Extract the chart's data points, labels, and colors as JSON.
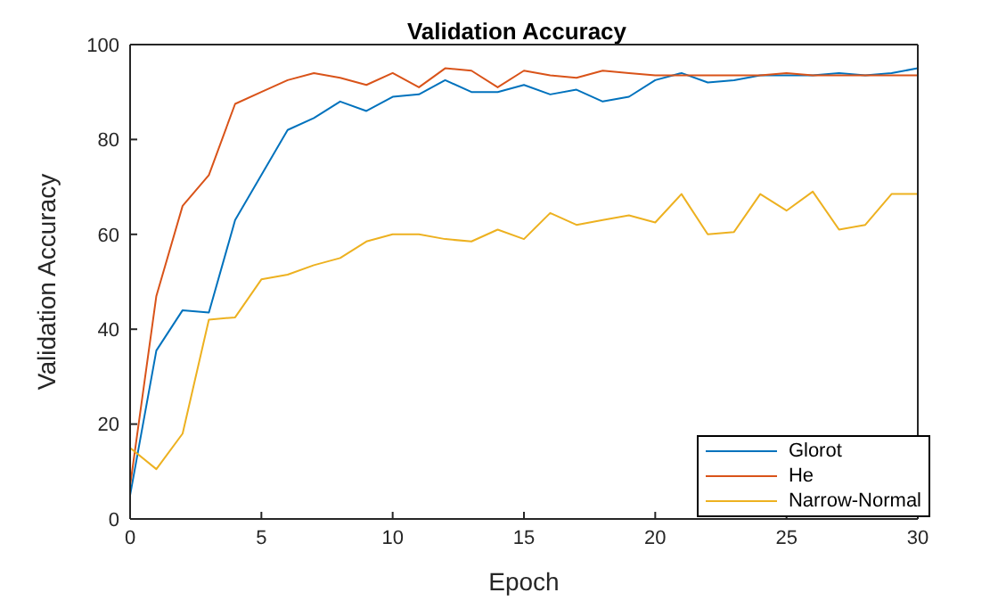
{
  "chart_data": {
    "type": "line",
    "title": "Validation Accuracy",
    "xlabel": "Epoch",
    "ylabel": "Validation Accuracy",
    "x": [
      0,
      1,
      2,
      3,
      4,
      5,
      6,
      7,
      8,
      9,
      10,
      11,
      12,
      13,
      14,
      15,
      16,
      17,
      18,
      19,
      20,
      21,
      22,
      23,
      24,
      25,
      26,
      27,
      28,
      29,
      30
    ],
    "series": [
      {
        "name": "Glorot",
        "color": "#0072bd",
        "values": [
          5,
          35.5,
          44,
          43.5,
          63,
          72.5,
          82,
          84.5,
          88,
          86,
          89,
          89.5,
          92.5,
          90,
          90,
          91.5,
          89.5,
          90.5,
          88,
          89,
          92.5,
          94,
          92,
          92.5,
          93.5,
          93.5,
          93.5,
          94,
          93.5,
          94,
          95
        ]
      },
      {
        "name": "He",
        "color": "#d95319",
        "values": [
          7,
          47,
          66,
          72.5,
          87.5,
          90,
          92.5,
          94,
          93,
          91.5,
          94,
          91,
          95,
          94.5,
          91,
          94.5,
          93.5,
          93,
          94.5,
          94,
          93.5,
          93.5,
          93.5,
          93.5,
          93.5,
          94,
          93.5,
          93.5,
          93.5,
          93.5,
          93.5
        ]
      },
      {
        "name": "Narrow-Normal",
        "color": "#edb120",
        "values": [
          15,
          10.5,
          18,
          42,
          42.5,
          50.5,
          51.5,
          53.5,
          55,
          58.5,
          60,
          60,
          59,
          58.5,
          61,
          59,
          64.5,
          62,
          63,
          64,
          62.5,
          68.5,
          60,
          60.5,
          68.5,
          65,
          69,
          61,
          62,
          68.5,
          68.5
        ]
      }
    ],
    "xlim": [
      0,
      30
    ],
    "xticks": [
      0,
      5,
      10,
      15,
      20,
      25,
      30
    ],
    "ylim": [
      0,
      100
    ],
    "yticks": [
      0,
      20,
      40,
      60,
      80,
      100
    ],
    "grid": false,
    "legend": "bottom right",
    "marker": "none",
    "line_style": "solid"
  }
}
